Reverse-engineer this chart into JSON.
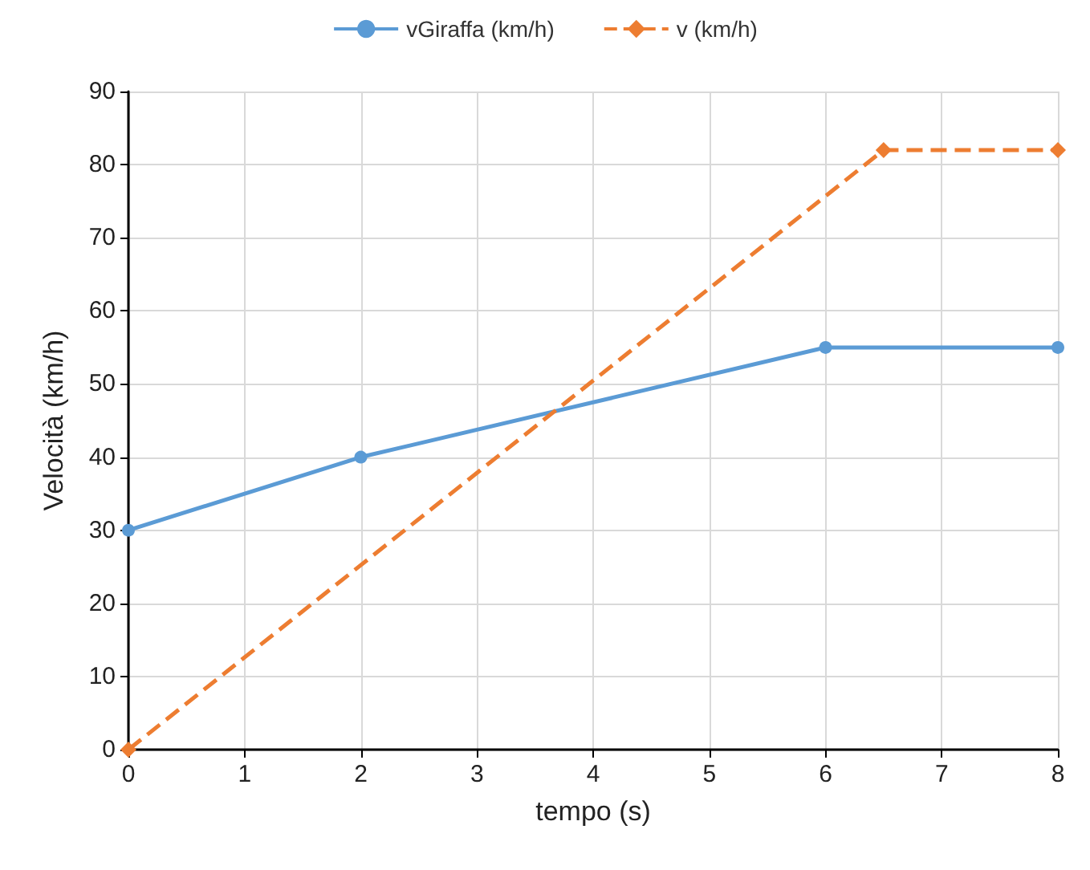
{
  "chart_data": {
    "type": "line",
    "xlabel": "tempo (s)",
    "ylabel": "Velocità (km/h)",
    "xlim": [
      0,
      8
    ],
    "xticks": [
      0,
      1,
      2,
      3,
      4,
      5,
      6,
      7,
      8
    ],
    "ylim": [
      0,
      90
    ],
    "yticks": [
      0,
      10,
      20,
      30,
      40,
      50,
      60,
      70,
      80,
      90
    ],
    "grid": true,
    "legend": "top",
    "series": [
      {
        "name": "vGiraffa (km/h)",
        "color": "#5b9bd5",
        "x": [
          0,
          2,
          6,
          8
        ],
        "values": [
          30,
          40,
          55,
          55
        ],
        "marker": "circle",
        "line_style": "solid"
      },
      {
        "name": "v (km/h)",
        "color": "#ed7d31",
        "x": [
          0,
          6.5,
          8
        ],
        "values": [
          0,
          82,
          82
        ],
        "marker": "diamond",
        "line_style": "dashed"
      }
    ]
  }
}
